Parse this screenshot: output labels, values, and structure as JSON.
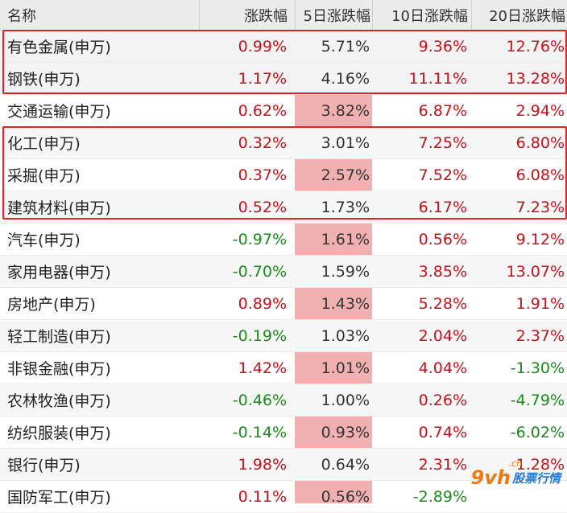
{
  "header": {
    "name": "名称",
    "change": "涨跌幅",
    "change5": "5日涨跌幅",
    "change10": "10日涨跌幅",
    "change20": "20日涨跌幅"
  },
  "rows": [
    {
      "name": "有色金属(申万)",
      "d1": "0.99%",
      "d5": "5.71%",
      "d10": "9.36%",
      "d20": "12.76%"
    },
    {
      "name": "钢铁(申万)",
      "d1": "1.17%",
      "d5": "4.16%",
      "d10": "11.11%",
      "d20": "13.28%"
    },
    {
      "name": "交通运输(申万)",
      "d1": "0.62%",
      "d5": "3.82%",
      "d10": "6.87%",
      "d20": "2.94%"
    },
    {
      "name": "化工(申万)",
      "d1": "0.32%",
      "d5": "3.01%",
      "d10": "7.25%",
      "d20": "6.80%"
    },
    {
      "name": "采掘(申万)",
      "d1": "0.37%",
      "d5": "2.57%",
      "d10": "7.52%",
      "d20": "6.08%"
    },
    {
      "name": "建筑材料(申万)",
      "d1": "0.52%",
      "d5": "1.73%",
      "d10": "6.17%",
      "d20": "7.23%"
    },
    {
      "name": "汽车(申万)",
      "d1": "-0.97%",
      "d5": "1.61%",
      "d10": "0.56%",
      "d20": "9.12%"
    },
    {
      "name": "家用电器(申万)",
      "d1": "-0.70%",
      "d5": "1.59%",
      "d10": "3.85%",
      "d20": "13.07%"
    },
    {
      "name": "房地产(申万)",
      "d1": "0.89%",
      "d5": "1.43%",
      "d10": "5.28%",
      "d20": "1.91%"
    },
    {
      "name": "轻工制造(申万)",
      "d1": "-0.19%",
      "d5": "1.03%",
      "d10": "2.04%",
      "d20": "2.37%"
    },
    {
      "name": "非银金融(申万)",
      "d1": "1.42%",
      "d5": "1.01%",
      "d10": "4.04%",
      "d20": "-1.30%"
    },
    {
      "name": "农林牧渔(申万)",
      "d1": "-0.46%",
      "d5": "1.00%",
      "d10": "0.26%",
      "d20": "-4.79%"
    },
    {
      "name": "纺织服装(申万)",
      "d1": "-0.14%",
      "d5": "0.93%",
      "d10": "0.74%",
      "d20": "-6.02%"
    },
    {
      "name": "银行(申万)",
      "d1": "1.98%",
      "d5": "0.64%",
      "d10": "2.31%",
      "d20": "1.28%"
    },
    {
      "name": "国防军工(申万)",
      "d1": "0.11%",
      "d5": "0.56%",
      "d10": "-2.89%",
      "d20": ""
    }
  ],
  "watermark": {
    "logo": "9vh",
    "text": "股票行情",
    "suffix": ".cn"
  },
  "colors": {
    "rise": "#c8101a",
    "fall": "#1a8a1a",
    "highlight": "#f1b1b1",
    "box": "#e0242a"
  }
}
